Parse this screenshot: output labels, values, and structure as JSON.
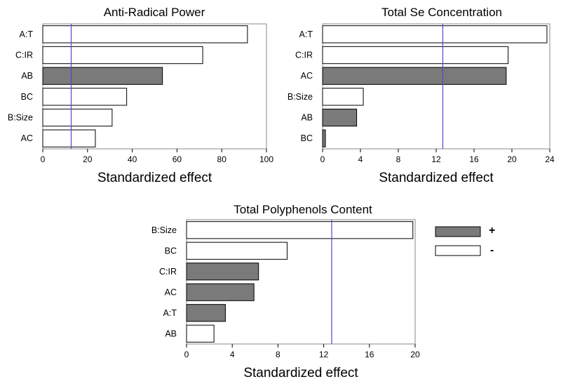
{
  "chart_data": [
    {
      "type": "bar",
      "orientation": "horizontal",
      "title": "Anti-Radical Power",
      "xlabel": "Standardized effect",
      "categories": [
        "A:T",
        "C:IR",
        "AB",
        "BC",
        "B:Size",
        "AC"
      ],
      "values": [
        91.5,
        71.5,
        53.5,
        37.5,
        31,
        23.5
      ],
      "signs": [
        "-",
        "-",
        "+",
        "-",
        "-",
        "-"
      ],
      "xlim": [
        0,
        100
      ],
      "ticks": [
        0,
        20,
        40,
        60,
        80,
        100
      ],
      "tick_labels": [
        "0",
        "20",
        "40",
        "60",
        "80",
        "100"
      ],
      "reference_line": 12.7
    },
    {
      "type": "bar",
      "orientation": "horizontal",
      "title": "Total Se Concentration",
      "xlabel": "Standardized effect",
      "categories": [
        "A:T",
        "C:IR",
        "AC",
        "B:Size",
        "AB",
        "BC"
      ],
      "values": [
        23.7,
        19.6,
        19.4,
        4.3,
        3.6,
        0.3
      ],
      "signs": [
        "-",
        "-",
        "+",
        "-",
        "+",
        "+"
      ],
      "xlim": [
        0,
        24
      ],
      "ticks": [
        0,
        4,
        8,
        12,
        16,
        20,
        24
      ],
      "tick_labels": [
        "0",
        "4",
        "8",
        "12",
        "16",
        "20",
        "24"
      ],
      "reference_line": 12.7
    },
    {
      "type": "bar",
      "orientation": "horizontal",
      "title": "Total Polyphenols  Content",
      "xlabel": "Standardized effect",
      "categories": [
        "B:Size",
        "BC",
        "C:IR",
        "AC",
        "A:T",
        "AB"
      ],
      "values": [
        19.8,
        8.8,
        6.3,
        5.9,
        3.4,
        2.4
      ],
      "signs": [
        "-",
        "-",
        "+",
        "+",
        "+",
        "-"
      ],
      "xlim": [
        0,
        20
      ],
      "ticks": [
        0,
        4,
        8,
        12,
        16,
        20
      ],
      "tick_labels": [
        "0",
        "4",
        "8",
        "12",
        "16",
        "20"
      ],
      "reference_line": 12.7
    }
  ],
  "legend": {
    "items": [
      {
        "sign": "+",
        "label": "+",
        "color": "#7a7a7a"
      },
      {
        "sign": "-",
        "label": "-",
        "color": "#ffffff"
      }
    ]
  },
  "colors": {
    "positive_bar": "#7a7a7a",
    "negative_bar": "#ffffff",
    "reference_line": "#4a4ad8",
    "frame": "#888888"
  }
}
